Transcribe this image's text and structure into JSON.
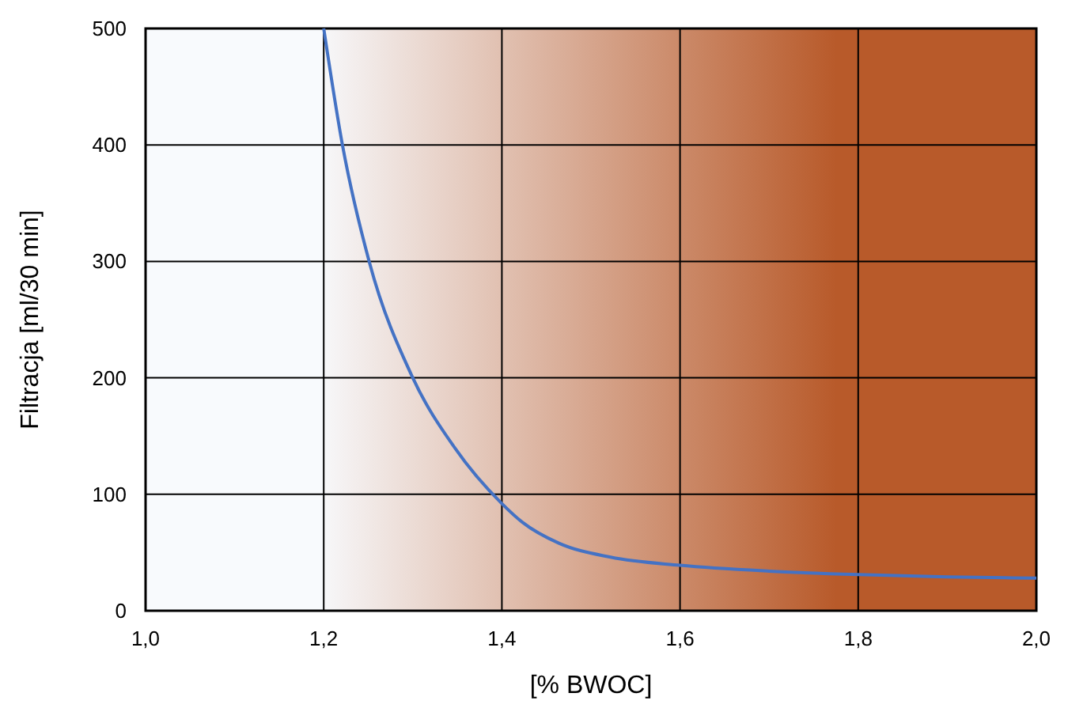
{
  "chart_data": {
    "type": "line",
    "xlabel": "[% BWOC]",
    "ylabel": "Filtracja [ml/30 min]",
    "x": [
      1.2,
      1.221,
      1.251,
      1.3,
      1.347,
      1.4,
      1.423,
      1.464,
      1.522,
      1.6,
      1.7,
      1.8,
      1.9,
      2.0
    ],
    "series": [
      {
        "color": "#4472c4",
        "values": [
          500,
          400,
          300,
          200,
          140,
          92,
          76,
          58,
          46,
          39,
          34,
          31,
          29,
          28
        ]
      }
    ],
    "xlim": [
      1.0,
      2.0
    ],
    "xticks": [
      {
        "value": 1.0,
        "label": "1,0"
      },
      {
        "value": 1.2,
        "label": "1,2"
      },
      {
        "value": 1.4,
        "label": "1,4"
      },
      {
        "value": 1.6,
        "label": "1,6"
      },
      {
        "value": 1.8,
        "label": "1,8"
      },
      {
        "value": 2.0,
        "label": "2,0"
      }
    ],
    "ylim": [
      0,
      500
    ],
    "yticks": [
      0,
      100,
      200,
      300,
      400,
      500
    ],
    "grid": true,
    "marker": "none",
    "line_style": "solid",
    "bands": [
      {
        "axis": "x",
        "from": 1.2,
        "to": 2.0,
        "color": "#b85a2a"
      }
    ]
  }
}
